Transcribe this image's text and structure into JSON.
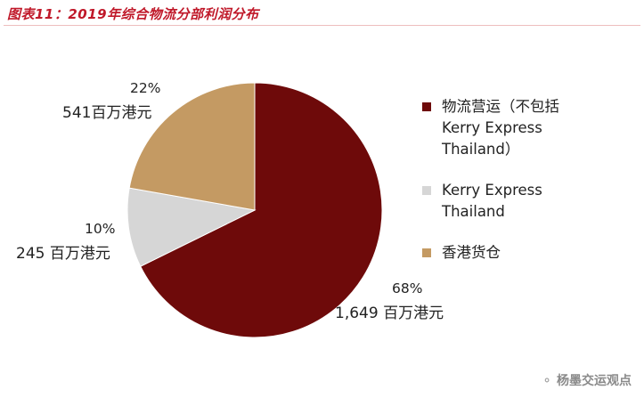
{
  "title": "图表11：2019年综合物流分部利润分布",
  "watermark": {
    "icon": "wechat-icon",
    "text": "杨墨交运观点"
  },
  "colors": {
    "title": "#c0192a"
  },
  "chart_data": {
    "type": "pie",
    "start": "top, clockwise",
    "slices": [
      {
        "label": "物流营运（不包括\nKerry Express\nThailand）",
        "value": 1649,
        "value_text": "1,649 百万港元",
        "percent_text": "68%",
        "color": "#6e0a0a"
      },
      {
        "label": "Kerry Express\nThailand",
        "value": 245,
        "value_text": "245 百万港元",
        "percent_text": "10%",
        "color": "#d6d6d6"
      },
      {
        "label": "香港货仓",
        "value": 541,
        "value_text": "541百万港元",
        "percent_text": "22%",
        "color": "#c49a63"
      }
    ],
    "legend_position": "right"
  }
}
